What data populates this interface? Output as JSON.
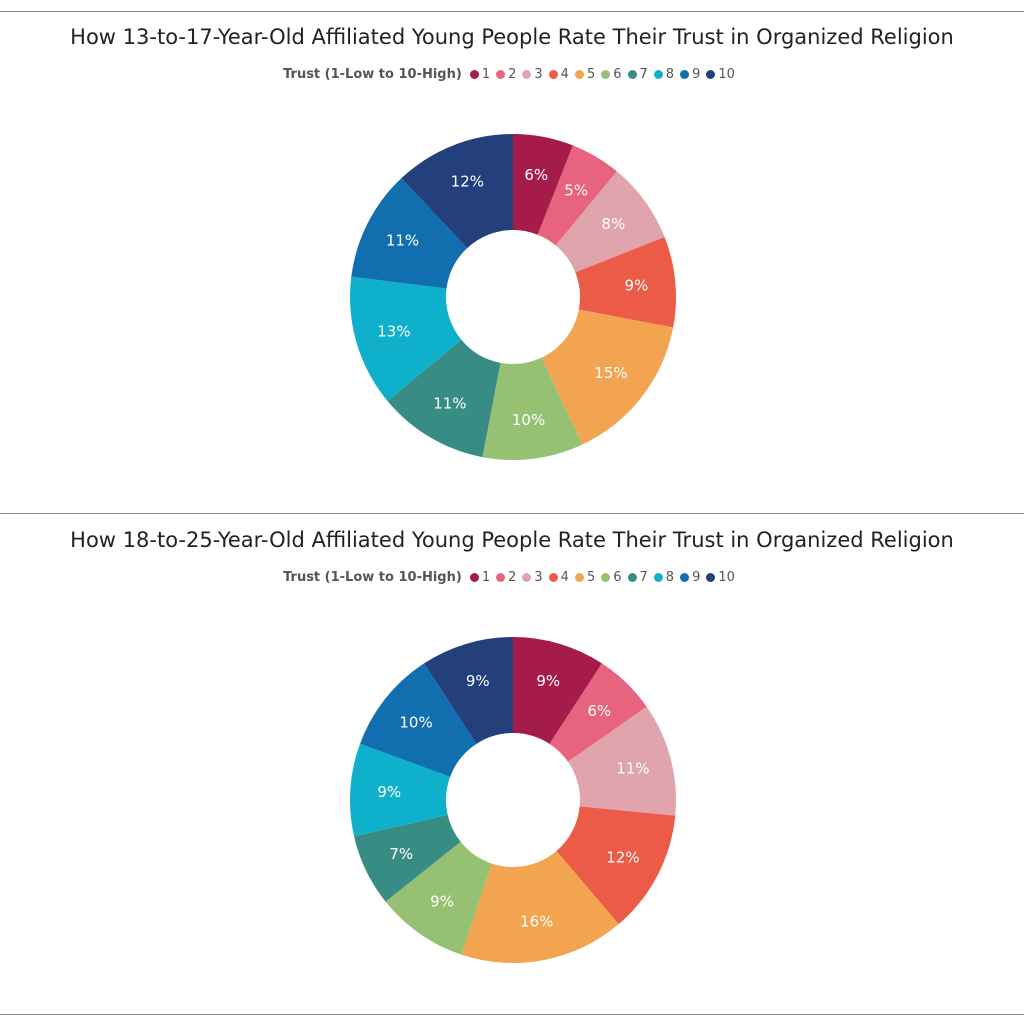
{
  "chart_data": [
    {
      "type": "pie",
      "title": "How 13-to-17-Year-Old Affiliated Young People Rate Their Trust in Organized Religion",
      "legend_title": "Trust (1-Low to 10-High)",
      "legend_placement": "top",
      "categories": [
        "1",
        "2",
        "3",
        "4",
        "5",
        "6",
        "7",
        "8",
        "9",
        "10"
      ],
      "values": [
        6,
        5,
        8,
        9,
        15,
        10,
        11,
        13,
        11,
        12
      ],
      "data_labels": [
        "6%",
        "5%",
        "8%",
        "9%",
        "15%",
        "10%",
        "11%",
        "13%",
        "11%",
        "12%"
      ],
      "donut": true
    },
    {
      "type": "pie",
      "title": "How 18-to-25-Year-Old Affiliated Young People Rate Their Trust in Organized Religion",
      "legend_title": "Trust (1-Low to 10-High)",
      "legend_placement": "top",
      "categories": [
        "1",
        "2",
        "3",
        "4",
        "5",
        "6",
        "7",
        "8",
        "9",
        "10"
      ],
      "values": [
        9,
        6,
        11,
        12,
        16,
        9,
        7,
        9,
        10,
        9
      ],
      "data_labels": [
        "9%",
        "6%",
        "11%",
        "12%",
        "16%",
        "9%",
        "7%",
        "9%",
        "10%",
        "9%"
      ],
      "donut": true
    }
  ],
  "colors": [
    "#a51c4c",
    "#e8637d",
    "#e0a4ac",
    "#ec5b47",
    "#f3a450",
    "#96c173",
    "#378c84",
    "#0fb0cc",
    "#126faf",
    "#233f7c"
  ]
}
